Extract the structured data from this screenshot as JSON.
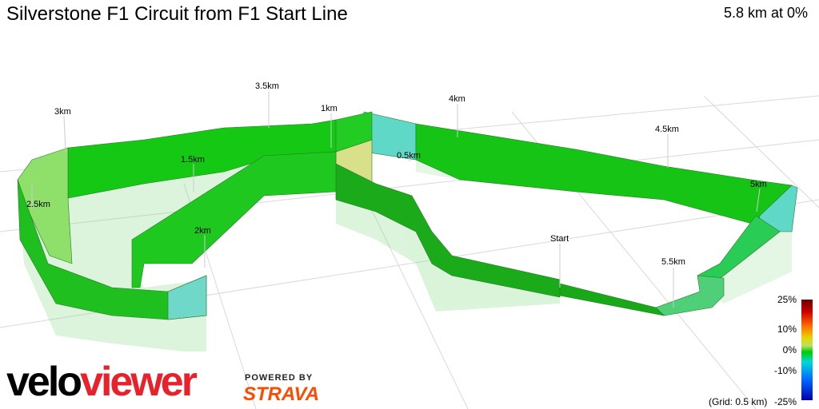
{
  "header": {
    "title": "Silverstone F1 Circuit from F1 Start Line",
    "summary": "5.8 km at 0%"
  },
  "km_markers": [
    "0.5km",
    "1km",
    "1.5km",
    "2km",
    "2.5km",
    "3km",
    "3.5km",
    "4km",
    "4.5km",
    "5km",
    "5.5km"
  ],
  "start_label": "Start",
  "legend": {
    "ticks": [
      "25%",
      "10%",
      "0%",
      "-10%",
      "-25%"
    ],
    "grid_note": "(Grid: 0.5 km)"
  },
  "branding": {
    "logo_part1": "velo",
    "logo_part2": "viewer",
    "powered_by": "POWERED BY",
    "strava": "STRAVA"
  },
  "colors": {
    "track_green": "#1ec81e",
    "track_cyan": "#5fd8c8",
    "track_yellow": "#d8e08a",
    "logo_red": "#e8212b",
    "strava_orange": "#fc4c02"
  }
}
